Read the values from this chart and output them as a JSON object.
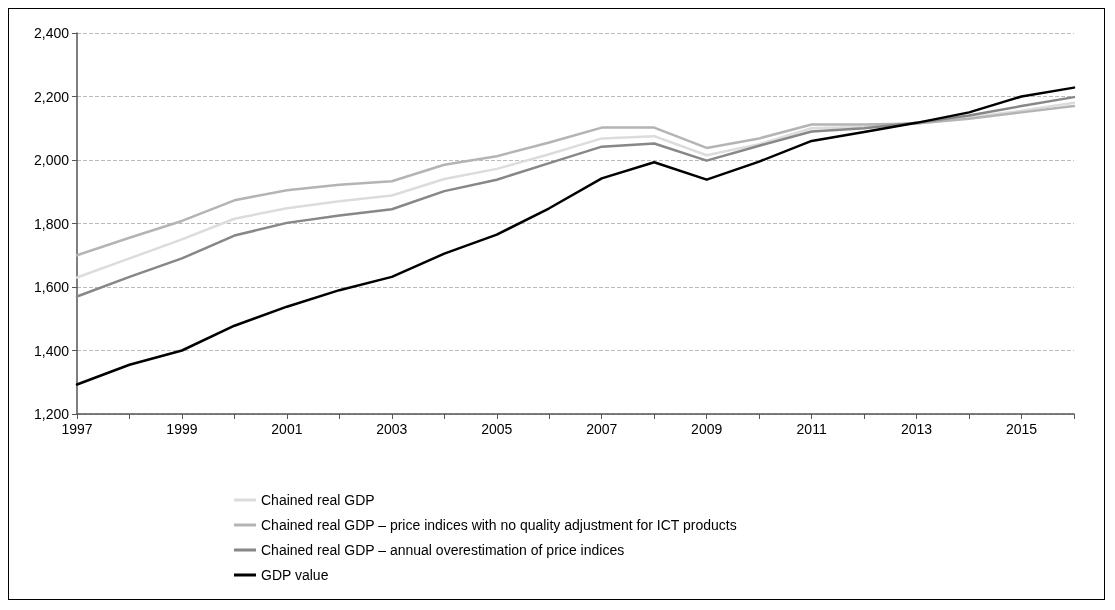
{
  "chart_data": {
    "type": "line",
    "categories": [
      "1997",
      null,
      "1999",
      null,
      "2001",
      null,
      "2003",
      null,
      "2005",
      null,
      "2007",
      null,
      "2009",
      null,
      "2011",
      null,
      "2013",
      null,
      "2015",
      null
    ],
    "series": [
      {
        "name": "Chained real GDP",
        "color": "#dcdcdc",
        "values": [
          1630,
          1690,
          1750,
          1815,
          1848,
          1870,
          1888,
          1940,
          1972,
          2018,
          2068,
          2075,
          2015,
          2050,
          2100,
          2105,
          2115,
          2135,
          2155,
          2180
        ]
      },
      {
        "name": "Chained real GDP – price indices with no quality adjustment for ICT products",
        "color": "#b4b4b4",
        "values": [
          1700,
          1755,
          1808,
          1873,
          1905,
          1922,
          1933,
          1985,
          2012,
          2055,
          2102,
          2102,
          2038,
          2068,
          2112,
          2112,
          2115,
          2130,
          2150,
          2170
        ]
      },
      {
        "name": "Chained real GDP – annual overestimation of price indices",
        "color": "#878787",
        "values": [
          1570,
          1632,
          1690,
          1762,
          1802,
          1825,
          1845,
          1902,
          1938,
          1990,
          2042,
          2052,
          1998,
          2045,
          2090,
          2100,
          2117,
          2140,
          2170,
          2198
        ]
      },
      {
        "name": "GDP value",
        "color": "#000000",
        "values": [
          1293,
          1355,
          1400,
          1478,
          1538,
          1590,
          1632,
          1705,
          1765,
          1848,
          1942,
          1993,
          1938,
          1995,
          2060,
          2088,
          2117,
          2150,
          2200,
          2228
        ]
      }
    ],
    "ylim": [
      1200,
      2400
    ],
    "yticks": [
      {
        "value": 1200,
        "label": "1,200"
      },
      {
        "value": 1400,
        "label": "1,400"
      },
      {
        "value": 1600,
        "label": "1,600"
      },
      {
        "value": 1800,
        "label": "1,800"
      },
      {
        "value": 2000,
        "label": "2,000"
      },
      {
        "value": 2200,
        "label": "2,200"
      },
      {
        "value": 2400,
        "label": "2,400"
      }
    ],
    "grid": "y",
    "legend": "bottom",
    "marker": "none",
    "line_style": "solid"
  }
}
